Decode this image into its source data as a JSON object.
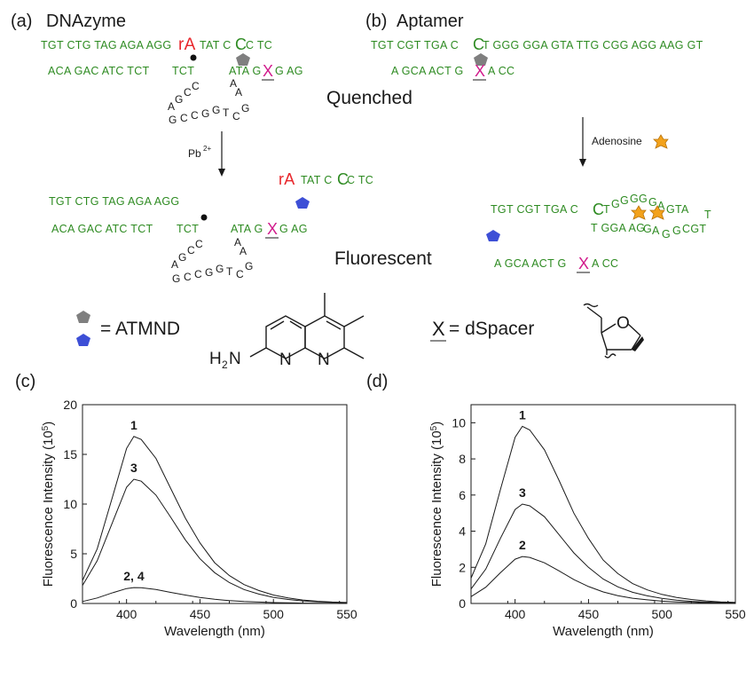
{
  "panels": {
    "a": "(a)",
    "a_title": "DNAzyme",
    "b": "(b)",
    "b_title": "Aptamer",
    "c": "(c)",
    "d": "(d)"
  },
  "dnazyme": {
    "top_strand_1": "TGT CTG TAG AGA AGG",
    "cleave_site": "rA",
    "top_strand_2": "TAT C",
    "top_big_c": "C",
    "top_strand_3": "C TC",
    "bottom_strand_1": "ACA GAC ATC TCT",
    "bottom_tct": "TCT",
    "bottom_strand_2": "ATA G",
    "bottom_x": "X",
    "bottom_strand_3": "G AG",
    "quenched": "Quenched",
    "pb": "Pb",
    "pb_charge": "2+",
    "fluorescent": "Fluorescent",
    "product_rA": "rA",
    "product_strand": "TAT C",
    "product_big_c": "C",
    "product_end": "C TC",
    "frag_top": "TGT CTG TAG AGA AGG",
    "frag_bot_1": "ACA GAC ATC TCT",
    "frag_tct": "TCT",
    "frag_bot_2": "ATA G",
    "frag_x": "X",
    "frag_bot_3": "G AG"
  },
  "aptamer": {
    "top_1": "TGT CGT TGA C",
    "top_big_c": "C",
    "top_2": "T GGG GGA GTA TTG CGG AGG AAG GT",
    "bottom_1": "A GCA ACT G",
    "bottom_x": "X",
    "bottom_2": "A CC",
    "adenosine": "Adenosine",
    "bound_1": "TGT CGT TGA C",
    "bound_big_c": "C",
    "bound_2": "T",
    "bound_3": "T GGA AG",
    "bound_4": "A GCA ACT G",
    "bound_x": "X",
    "bound_5": "A CC"
  },
  "legend": {
    "atmnd": "= ATMND",
    "dspacer_x": "X",
    "dspacer": "= dSpacer",
    "h2n": "H",
    "h2n_sub": "2",
    "h2n_n": "N",
    "ring_n1": "N",
    "ring_n2": "N",
    "ring_o": "O"
  },
  "colors": {
    "green": "#2e8b22",
    "red": "#e8262b",
    "magenta": "#d11b8c",
    "gray": "#7f7f7f",
    "blue": "#3d4fd6",
    "orange": "#f3a21b"
  },
  "chart_data": [
    {
      "type": "line",
      "xlabel": "Wavelength (nm)",
      "ylabel": "Fluorescence Intensity (10",
      "ylabel_sup": "5",
      "ylabel_end": ")",
      "xlim": [
        370,
        550
      ],
      "ylim": [
        0,
        20
      ],
      "xticks": [
        400,
        450,
        500,
        550
      ],
      "yticks": [
        0,
        5,
        10,
        15,
        20
      ],
      "series": [
        {
          "name": "1",
          "peak_x": 405,
          "peak_y": 16.8,
          "values_x": [
            370,
            380,
            390,
            400,
            405,
            410,
            420,
            430,
            440,
            450,
            460,
            470,
            480,
            490,
            500,
            510,
            520,
            530,
            540,
            550
          ],
          "values_y": [
            2.3,
            5.5,
            10.5,
            15.6,
            16.8,
            16.5,
            14.6,
            11.6,
            8.6,
            6.1,
            4.1,
            2.8,
            1.9,
            1.3,
            0.85,
            0.55,
            0.35,
            0.22,
            0.14,
            0.1
          ]
        },
        {
          "name": "3",
          "peak_x": 405,
          "peak_y": 12.5,
          "values_x": [
            370,
            380,
            390,
            400,
            405,
            410,
            420,
            430,
            440,
            450,
            460,
            470,
            480,
            490,
            500,
            510,
            520,
            530,
            540,
            550
          ],
          "values_y": [
            1.8,
            4.3,
            8.0,
            11.7,
            12.5,
            12.3,
            10.9,
            8.7,
            6.4,
            4.5,
            3.1,
            2.1,
            1.4,
            0.95,
            0.62,
            0.4,
            0.26,
            0.17,
            0.11,
            0.08
          ]
        },
        {
          "name": "2, 4",
          "peak_x": 405,
          "peak_y": 1.6,
          "values_x": [
            370,
            380,
            390,
            400,
            405,
            410,
            420,
            430,
            440,
            450,
            460,
            470,
            480,
            490,
            500,
            510,
            520,
            530,
            540,
            550
          ],
          "values_y": [
            0.2,
            0.55,
            1.05,
            1.5,
            1.6,
            1.58,
            1.4,
            1.12,
            0.85,
            0.6,
            0.42,
            0.29,
            0.2,
            0.14,
            0.09,
            0.06,
            0.04,
            0.03,
            0.02,
            0.01
          ]
        }
      ]
    },
    {
      "type": "line",
      "xlabel": "Wavelength (nm)",
      "ylabel": "Fluorescence Intensity (10",
      "ylabel_sup": "5",
      "ylabel_end": ")",
      "xlim": [
        370,
        550
      ],
      "ylim": [
        0,
        11
      ],
      "xticks": [
        400,
        450,
        500,
        550
      ],
      "yticks": [
        0,
        2,
        4,
        6,
        8,
        10
      ],
      "series": [
        {
          "name": "1",
          "peak_x": 405,
          "peak_y": 9.8,
          "values_x": [
            370,
            380,
            390,
            400,
            405,
            410,
            420,
            430,
            440,
            450,
            460,
            470,
            480,
            490,
            500,
            510,
            520,
            530,
            540,
            550
          ],
          "values_y": [
            1.4,
            3.3,
            6.3,
            9.2,
            9.8,
            9.6,
            8.5,
            6.8,
            5.0,
            3.6,
            2.4,
            1.65,
            1.1,
            0.75,
            0.5,
            0.33,
            0.22,
            0.14,
            0.09,
            0.06
          ]
        },
        {
          "name": "3",
          "peak_x": 405,
          "peak_y": 5.5,
          "values_x": [
            370,
            380,
            390,
            400,
            405,
            410,
            420,
            430,
            440,
            450,
            460,
            470,
            480,
            490,
            500,
            510,
            520,
            530,
            540,
            550
          ],
          "values_y": [
            0.8,
            1.9,
            3.6,
            5.2,
            5.5,
            5.4,
            4.8,
            3.8,
            2.8,
            2.0,
            1.35,
            0.92,
            0.62,
            0.42,
            0.28,
            0.18,
            0.12,
            0.08,
            0.05,
            0.03
          ]
        },
        {
          "name": "2",
          "peak_x": 405,
          "peak_y": 2.6,
          "values_x": [
            370,
            380,
            390,
            400,
            405,
            410,
            420,
            430,
            440,
            450,
            460,
            470,
            480,
            490,
            500,
            510,
            520,
            530,
            540,
            550
          ],
          "values_y": [
            0.38,
            0.9,
            1.7,
            2.45,
            2.6,
            2.55,
            2.25,
            1.8,
            1.32,
            0.94,
            0.64,
            0.43,
            0.29,
            0.2,
            0.13,
            0.09,
            0.06,
            0.04,
            0.025,
            0.015
          ]
        }
      ]
    }
  ]
}
